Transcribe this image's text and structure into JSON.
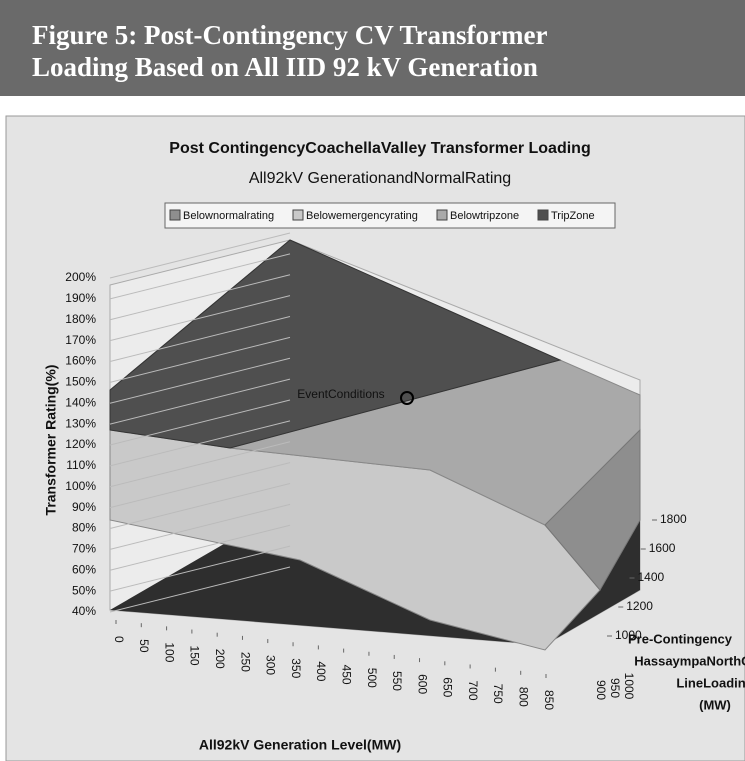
{
  "header": {
    "title_line1": "Figure 5: Post-Contingency CV Transformer",
    "title_line2": "Loading Based on All IID 92 kV Generation"
  },
  "chart_data": {
    "type": "surface3d",
    "title": "Post ContingencyCoachellaValley Transformer Loading",
    "subtitle": "All92kV GenerationandNormalRating",
    "series": [
      {
        "name": "Belownormalrating",
        "color": "#8e8e8e"
      },
      {
        "name": "Belowemergencyrating",
        "color": "#c9c9c9"
      },
      {
        "name": "Belowtripzone",
        "color": "#a9a9a9"
      },
      {
        "name": "TripZone",
        "color": "#4f4f4f"
      }
    ],
    "ylabel": "Transformer Rating(%)",
    "xlabel": "All92kV Generation Level(MW)",
    "zlabel": [
      "Pre-Contingency",
      "HassaympaNorthGila",
      "LineLoading",
      "(MW)"
    ],
    "annotation": "EventConditions",
    "ylim": [
      40,
      200
    ],
    "yticks": [
      {
        "value": 200,
        "label": "200%"
      },
      {
        "value": 190,
        "label": "190%"
      },
      {
        "value": 180,
        "label": "180%"
      },
      {
        "value": 170,
        "label": "170%"
      },
      {
        "value": 160,
        "label": "160%"
      },
      {
        "value": 150,
        "label": "150%"
      },
      {
        "value": 140,
        "label": "140%"
      },
      {
        "value": 130,
        "label": "130%"
      },
      {
        "value": 120,
        "label": "120%"
      },
      {
        "value": 110,
        "label": "110%"
      },
      {
        "value": 100,
        "label": "100%"
      },
      {
        "value": 90,
        "label": "90%"
      },
      {
        "value": 80,
        "label": "80%"
      },
      {
        "value": 70,
        "label": "70%"
      },
      {
        "value": 60,
        "label": "60%"
      },
      {
        "value": 50,
        "label": "50%"
      },
      {
        "value": 40,
        "label": "40%"
      }
    ],
    "xlim": [
      0,
      850
    ],
    "xticks": [
      0,
      50,
      100,
      150,
      200,
      250,
      300,
      350,
      400,
      450,
      500,
      550,
      600,
      650,
      700,
      750,
      800,
      850
    ],
    "zticks_front": [
      900,
      950,
      1000
    ],
    "zticks": [
      1000,
      1200,
      1400,
      1600,
      1800
    ]
  }
}
